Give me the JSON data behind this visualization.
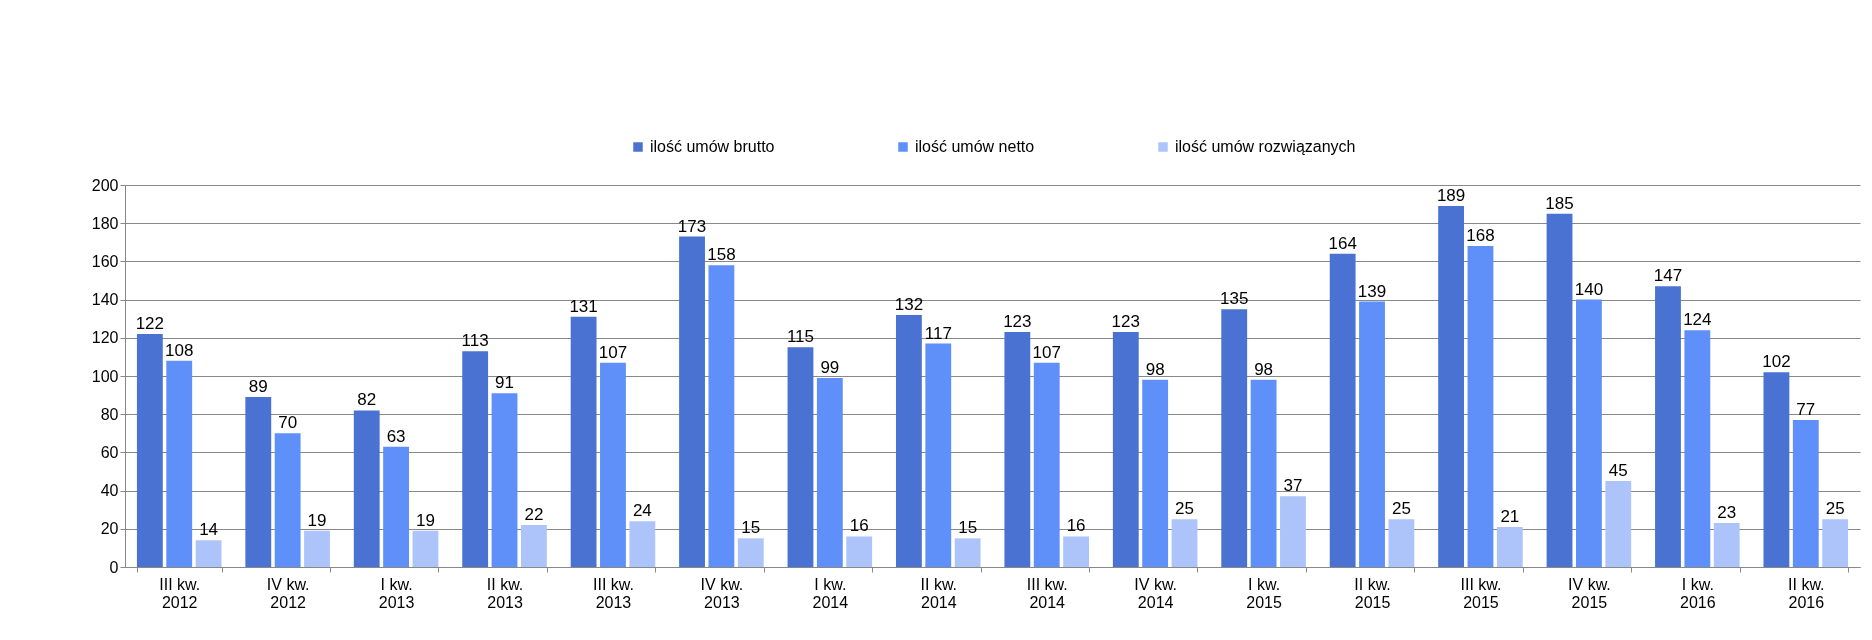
{
  "chart_data": {
    "type": "bar",
    "categories": [
      "III kw.\n2012",
      "IV kw.\n2012",
      "I kw.\n2013",
      "II kw.\n2013",
      "III kw.\n2013",
      "IV kw.\n2013",
      "I kw.\n2014",
      "II kw.\n2014",
      "III kw.\n2014",
      "IV kw.\n2014",
      "I kw.\n2015",
      "II kw.\n2015",
      "III kw.\n2015",
      "IV kw.\n2015",
      "I kw.\n2016",
      "II kw.\n2016"
    ],
    "series": [
      {
        "name": "ilość umów brutto",
        "color": "#4a72d2",
        "values": [
          122,
          89,
          82,
          113,
          131,
          173,
          115,
          132,
          123,
          123,
          135,
          164,
          189,
          185,
          147,
          102
        ]
      },
      {
        "name": "ilość umów netto",
        "color": "#5f8ff8",
        "values": [
          108,
          70,
          63,
          91,
          107,
          158,
          99,
          117,
          107,
          98,
          98,
          139,
          168,
          140,
          124,
          77
        ]
      },
      {
        "name": "ilość umów rozwiązanych",
        "color": "#adc4fb",
        "values": [
          14,
          19,
          19,
          22,
          24,
          15,
          16,
          15,
          16,
          25,
          37,
          25,
          21,
          45,
          23,
          25
        ]
      }
    ],
    "ylim": [
      0,
      200
    ],
    "yticks": [
      0,
      20,
      40,
      60,
      80,
      100,
      120,
      140,
      160,
      180,
      200
    ],
    "grid": "y",
    "legend": "top",
    "data_labels": true
  }
}
